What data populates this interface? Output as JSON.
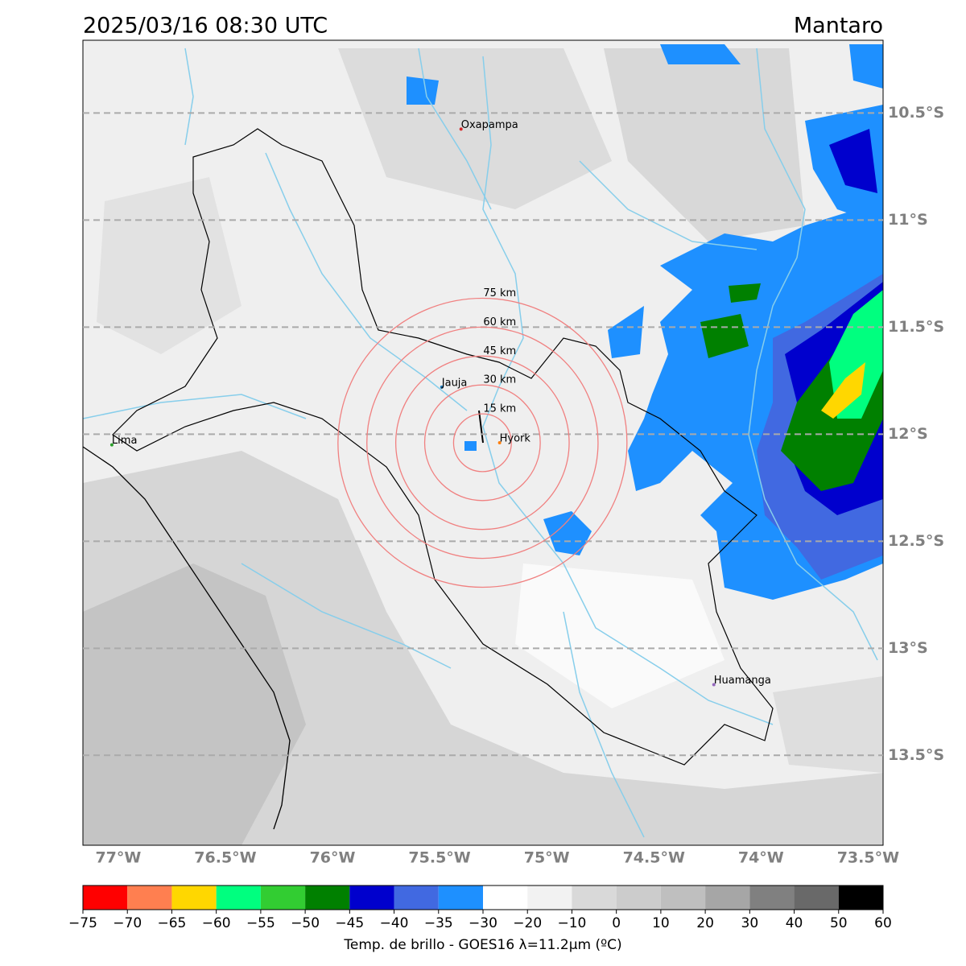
{
  "header": {
    "title": "2025/03/16 08:30 UTC",
    "region": "Mantaro"
  },
  "map": {
    "lon_range": [
      -77.165,
      -73.43
    ],
    "lat_range": [
      -10.16,
      -13.92
    ],
    "lon_ticks": [
      {
        "value": -77,
        "label": "77°W"
      },
      {
        "value": -76.5,
        "label": "76.5°W"
      },
      {
        "value": -76,
        "label": "76°W"
      },
      {
        "value": -75.5,
        "label": "75.5°W"
      },
      {
        "value": -75,
        "label": "75°W"
      },
      {
        "value": -74.5,
        "label": "74.5°W"
      },
      {
        "value": -74,
        "label": "74°W"
      },
      {
        "value": -73.5,
        "label": "73.5°W"
      }
    ],
    "lat_ticks": [
      {
        "value": -10.5,
        "label": "10.5°S"
      },
      {
        "value": -11,
        "label": "11°S"
      },
      {
        "value": -11.5,
        "label": "11.5°S"
      },
      {
        "value": -12,
        "label": "12°S"
      },
      {
        "value": -12.5,
        "label": "12.5°S"
      },
      {
        "value": -13,
        "label": "13°S"
      },
      {
        "value": -13.5,
        "label": "13.5°S"
      }
    ],
    "cities": [
      {
        "name": "Oxapampa",
        "lon": -75.4,
        "lat": -10.575,
        "color": "#d62728"
      },
      {
        "name": "Jauja",
        "lon": -75.49,
        "lat": -11.78,
        "color": "#1f77b4"
      },
      {
        "name": "Hyork",
        "lon": -75.22,
        "lat": -12.04,
        "color": "#ff7f0e"
      },
      {
        "name": "Lima",
        "lon": -77.03,
        "lat": -12.05,
        "color": "#2ca02c"
      },
      {
        "name": "Huamanga",
        "lon": -74.22,
        "lat": -13.17,
        "color": "#9467bd"
      }
    ],
    "rings": {
      "center_lon": -75.3,
      "center_lat": -12.04,
      "color": "#f08080",
      "radii": [
        {
          "value": 15,
          "label": "15 km"
        },
        {
          "value": 30,
          "label": "30 km"
        },
        {
          "value": 45,
          "label": "45 km"
        },
        {
          "value": 60,
          "label": "60 km"
        },
        {
          "value": 75,
          "label": "75 km"
        }
      ]
    }
  },
  "colorbar": {
    "colors": [
      "#ff0000",
      "#ff7f50",
      "#ffd700",
      "#00ff7f",
      "#32cd32",
      "#008000",
      "#0000cd",
      "#4169e1",
      "#1e90ff",
      "#ffffff",
      "#f2f2f2",
      "#d9d9d9",
      "#cccccc",
      "#bfbfbf",
      "#a6a6a6",
      "#808080",
      "#696969",
      "#000000"
    ],
    "ticks": [
      {
        "value": -75,
        "label": "−75"
      },
      {
        "value": -70,
        "label": "−70"
      },
      {
        "value": -65,
        "label": "−65"
      },
      {
        "value": -60,
        "label": "−60"
      },
      {
        "value": -55,
        "label": "−55"
      },
      {
        "value": -50,
        "label": "−50"
      },
      {
        "value": -45,
        "label": "−45"
      },
      {
        "value": -40,
        "label": "−40"
      },
      {
        "value": -35,
        "label": "−35"
      },
      {
        "value": -30,
        "label": "−30"
      },
      {
        "value": -20,
        "label": "−20"
      },
      {
        "value": -10,
        "label": "−10"
      },
      0,
      10,
      20,
      30,
      40,
      50,
      60
    ],
    "label": "Temp. de brillo - GOES16 λ=11.2μm (ºC)"
  }
}
